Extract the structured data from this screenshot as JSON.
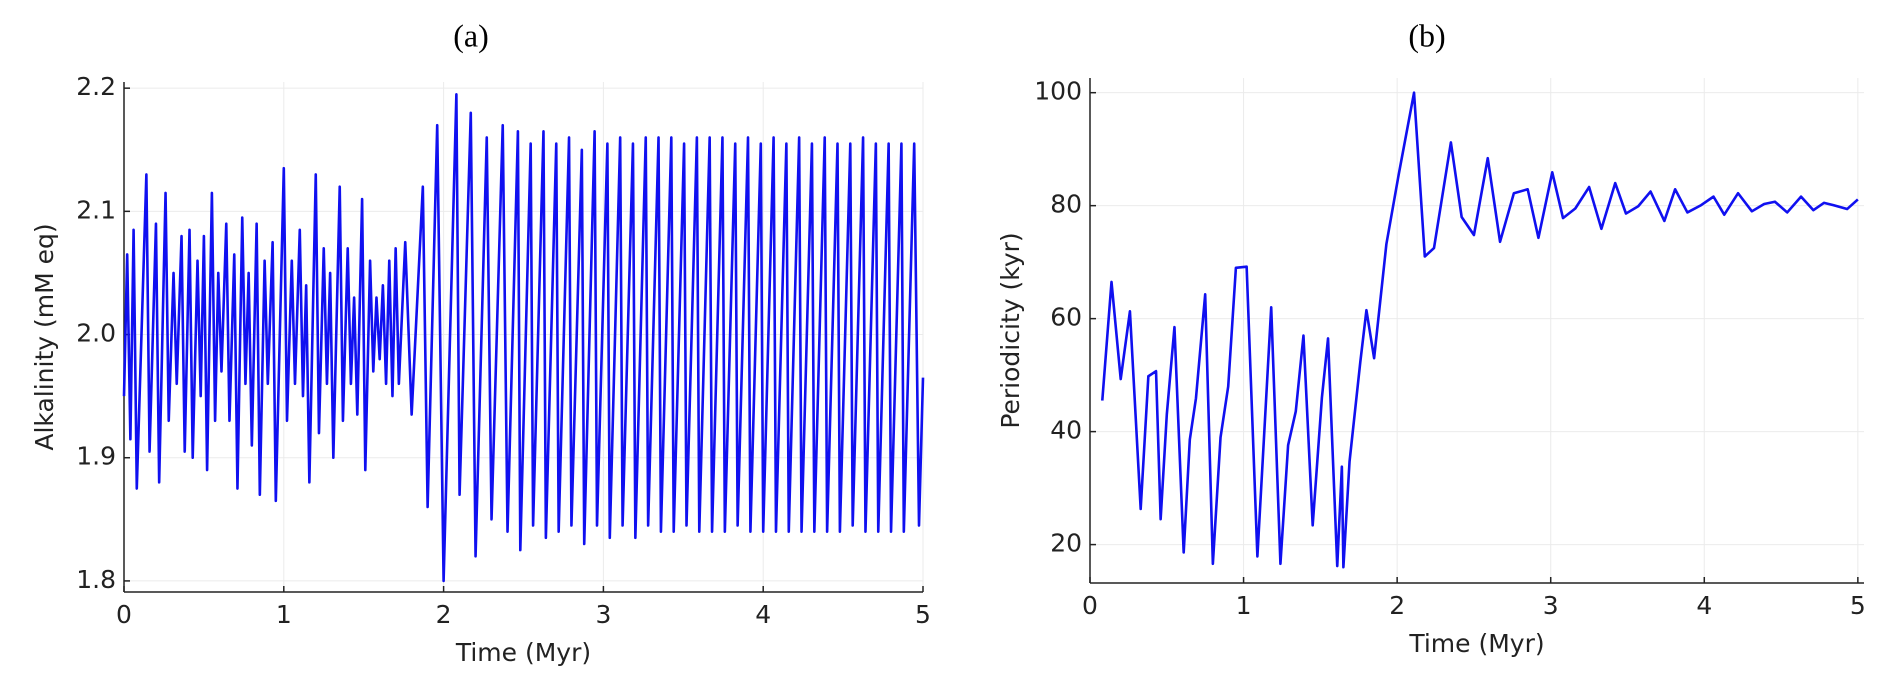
{
  "chart_data": [
    {
      "type": "line",
      "title": "(a)",
      "xlabel": "Time (Myr)",
      "ylabel": "Alkalinity (mM eq)",
      "xlim": [
        0,
        5
      ],
      "ylim": [
        1.791,
        2.205
      ],
      "xticks": [
        0,
        1,
        2,
        3,
        4,
        5
      ],
      "yticks": [
        1.8,
        1.9,
        {
          "value": 2,
          "label": "2.0"
        },
        2.1,
        2.2
      ],
      "grid": true,
      "series": [
        {
          "color": "#1010f0",
          "x": [
            0,
            0.02,
            0.04,
            0.06,
            0.08,
            0.14,
            0.16,
            0.2,
            0.22,
            0.26,
            0.28,
            0.31,
            0.33,
            0.36,
            0.38,
            0.41,
            0.43,
            0.46,
            0.48,
            0.5,
            0.52,
            0.55,
            0.57,
            0.59,
            0.61,
            0.64,
            0.66,
            0.69,
            0.71,
            0.74,
            0.76,
            0.78,
            0.8,
            0.83,
            0.85,
            0.88,
            0.9,
            0.93,
            0.95,
            1.0,
            1.02,
            1.05,
            1.07,
            1.1,
            1.12,
            1.14,
            1.16,
            1.2,
            1.22,
            1.25,
            1.27,
            1.29,
            1.31,
            1.35,
            1.37,
            1.4,
            1.42,
            1.44,
            1.46,
            1.49,
            1.51,
            1.54,
            1.56,
            1.58,
            1.6,
            1.62,
            1.64,
            1.66,
            1.68,
            1.7,
            1.72,
            1.76,
            1.8,
            1.87,
            1.9,
            1.96,
            2.0,
            2.08,
            2.1,
            2.17,
            2.2,
            2.27,
            2.3,
            2.37,
            2.4,
            2.465,
            2.48,
            2.545,
            2.56,
            2.625,
            2.64,
            2.705,
            2.72,
            2.785,
            2.8,
            2.865,
            2.88,
            2.945,
            2.96,
            3.025,
            3.04,
            3.105,
            3.12,
            3.185,
            3.2,
            3.265,
            3.28,
            3.345,
            3.36,
            3.425,
            3.44,
            3.505,
            3.52,
            3.585,
            3.6,
            3.665,
            3.68,
            3.745,
            3.76,
            3.825,
            3.84,
            3.905,
            3.92,
            3.985,
            4.0,
            4.065,
            4.08,
            4.145,
            4.16,
            4.225,
            4.24,
            4.305,
            4.32,
            4.385,
            4.4,
            4.465,
            4.48,
            4.545,
            4.56,
            4.625,
            4.64,
            4.705,
            4.72,
            4.785,
            4.8,
            4.865,
            4.88,
            4.945,
            4.975,
            5.0
          ],
          "values": [
            1.95,
            2.065,
            1.915,
            2.085,
            1.875,
            2.13,
            1.905,
            2.09,
            1.88,
            2.115,
            1.93,
            2.05,
            1.96,
            2.08,
            1.905,
            2.085,
            1.9,
            2.06,
            1.95,
            2.08,
            1.89,
            2.115,
            1.93,
            2.05,
            1.97,
            2.09,
            1.93,
            2.065,
            1.875,
            2.095,
            1.96,
            2.05,
            1.91,
            2.09,
            1.87,
            2.06,
            1.96,
            2.075,
            1.865,
            2.135,
            1.93,
            2.06,
            1.96,
            2.085,
            1.95,
            2.04,
            1.88,
            2.13,
            1.92,
            2.07,
            1.96,
            2.05,
            1.9,
            2.12,
            1.93,
            2.07,
            1.96,
            2.03,
            1.935,
            2.11,
            1.89,
            2.06,
            1.97,
            2.03,
            1.98,
            2.04,
            1.96,
            2.06,
            1.95,
            2.07,
            1.96,
            2.075,
            1.935,
            2.12,
            1.86,
            2.17,
            1.8,
            2.195,
            1.87,
            2.18,
            1.82,
            2.16,
            1.85,
            2.17,
            1.84,
            2.165,
            1.825,
            2.155,
            1.845,
            2.165,
            1.835,
            2.155,
            1.84,
            2.16,
            1.845,
            2.15,
            1.83,
            2.165,
            1.845,
            2.155,
            1.835,
            2.16,
            1.845,
            2.155,
            1.835,
            2.16,
            1.845,
            2.16,
            1.84,
            2.16,
            1.84,
            2.155,
            1.845,
            2.16,
            1.84,
            2.16,
            1.84,
            2.16,
            1.84,
            2.155,
            1.845,
            2.16,
            1.84,
            2.155,
            1.84,
            2.16,
            1.84,
            2.155,
            1.84,
            2.16,
            1.84,
            2.155,
            1.84,
            2.16,
            1.84,
            2.155,
            1.84,
            2.155,
            1.845,
            2.16,
            1.84,
            2.155,
            1.84,
            2.155,
            1.84,
            2.155,
            1.84,
            2.155,
            1.845,
            1.965
          ]
        }
      ]
    },
    {
      "type": "line",
      "title": "(b)",
      "xlabel": "Time (Myr)",
      "ylabel": "Periodicity (kyr)",
      "xlim": [
        0,
        5.04
      ],
      "ylim": [
        13.2,
        102.6
      ],
      "xticks": [
        0,
        1,
        2,
        3,
        4,
        5
      ],
      "yticks": [
        20,
        40,
        60,
        80,
        100
      ],
      "grid": true,
      "series": [
        {
          "color": "#1010f0",
          "x": [
            0.08,
            0.14,
            0.2,
            0.26,
            0.33,
            0.38,
            0.43,
            0.46,
            0.5,
            0.55,
            0.61,
            0.65,
            0.69,
            0.75,
            0.8,
            0.85,
            0.9,
            0.95,
            1.02,
            1.09,
            1.18,
            1.24,
            1.29,
            1.34,
            1.39,
            1.45,
            1.51,
            1.55,
            1.61,
            1.64,
            1.65,
            1.69,
            1.76,
            1.8,
            1.85,
            1.93,
            2.01,
            2.11,
            2.18,
            2.24,
            2.35,
            2.42,
            2.5,
            2.59,
            2.67,
            2.76,
            2.85,
            2.92,
            3.01,
            3.08,
            3.16,
            3.25,
            3.33,
            3.42,
            3.49,
            3.57,
            3.65,
            3.74,
            3.81,
            3.89,
            3.98,
            4.06,
            4.13,
            4.22,
            4.31,
            4.39,
            4.46,
            4.54,
            4.63,
            4.71,
            4.78,
            4.84,
            4.93,
            5.0
          ],
          "values": [
            45.5,
            66.5,
            49.3,
            61.3,
            26.3,
            49.8,
            50.7,
            24.5,
            43,
            58.5,
            18.6,
            38.6,
            45.9,
            64.3,
            16.6,
            39,
            48,
            69,
            69.2,
            17.9,
            62,
            16.6,
            37.6,
            43.6,
            57,
            23.4,
            46,
            56.5,
            16.2,
            33.8,
            16,
            34.7,
            52.3,
            61.5,
            53,
            73.2,
            85.5,
            100,
            71,
            72.5,
            91.2,
            78,
            74.8,
            88.4,
            73.6,
            82.2,
            82.9,
            74.3,
            85.9,
            77.8,
            79.5,
            83.3,
            75.9,
            84,
            78.6,
            79.9,
            82.5,
            77.3,
            82.9,
            78.8,
            80.1,
            81.6,
            78.4,
            82.2,
            79,
            80.3,
            80.7,
            78.8,
            81.6,
            79.2,
            80.5,
            80.1,
            79.4,
            81.1
          ]
        }
      ]
    }
  ]
}
